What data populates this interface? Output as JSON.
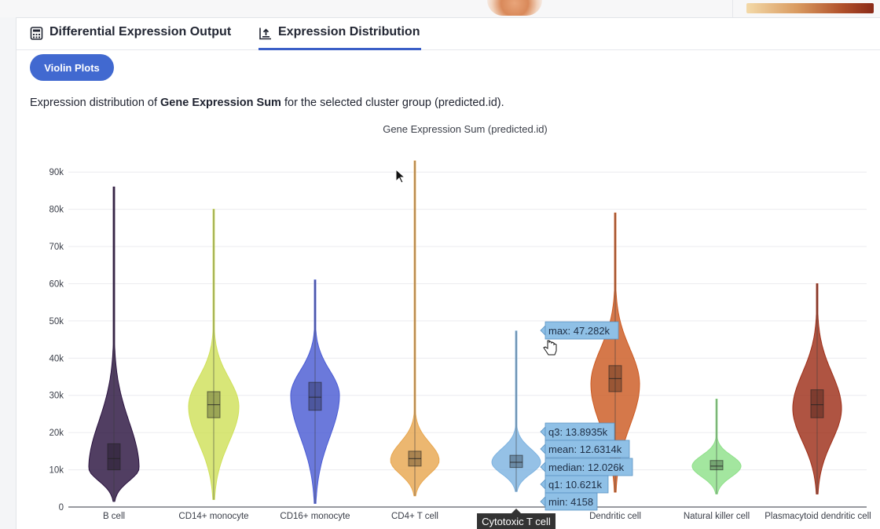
{
  "tabs": [
    {
      "label": "Differential Expression Output",
      "icon": "calculator-icon"
    },
    {
      "label": "Expression Distribution",
      "icon": "chart-upload-icon"
    }
  ],
  "violin_button": "Violin Plots",
  "description": {
    "prefix": "Expression distribution of ",
    "bold": "Gene Expression Sum",
    "suffix": " for the selected cluster group (predicted.id)."
  },
  "chart_data": {
    "type": "violin",
    "title": "Gene Expression Sum (predicted.id)",
    "ylim": [
      0,
      93000
    ],
    "yticks": [
      0,
      10000,
      20000,
      30000,
      40000,
      50000,
      60000,
      70000,
      80000,
      90000
    ],
    "ytick_labels": [
      "0",
      "10k",
      "20k",
      "30k",
      "40k",
      "50k",
      "60k",
      "70k",
      "80k",
      "90k"
    ],
    "grid": true,
    "categories": [
      "B cell",
      "CD14+ monocyte",
      "CD16+ monocyte",
      "CD4+ T cell",
      "Cytotoxic T cell",
      "Dendritic cell",
      "Natural killer cell",
      "Plasmacytoid dendritic cell"
    ],
    "series": [
      {
        "category": "B cell",
        "color": "#2b1340",
        "min": 1500,
        "q1": 10000,
        "median": 13000,
        "q3": 17000,
        "max": 86000,
        "mode": 10500,
        "width": 32
      },
      {
        "category": "CD14+ monocyte",
        "color": "#cfe05a",
        "min": 2000,
        "q1": 24000,
        "median": 27500,
        "q3": 31000,
        "max": 80000,
        "mode": 27000,
        "width": 32
      },
      {
        "category": "CD16+ monocyte",
        "color": "#4a5bd3",
        "min": 1000,
        "q1": 26000,
        "median": 29500,
        "q3": 33500,
        "max": 61000,
        "mode": 30000,
        "width": 31
      },
      {
        "category": "CD4+ T cell",
        "color": "#e8a750",
        "min": 3000,
        "q1": 11000,
        "median": 13000,
        "q3": 15000,
        "max": 93000,
        "mode": 12500,
        "width": 31
      },
      {
        "category": "Cytotoxic T cell",
        "color": "#7eb3e0",
        "min": 4158,
        "q1": 10621,
        "median": 12026,
        "q3": 13893.5,
        "max": 47282,
        "mean": 12631.4,
        "mode": 12000,
        "width": 31
      },
      {
        "category": "Dendritic cell",
        "color": "#cc5a22",
        "min": 4000,
        "q1": 31000,
        "median": 34500,
        "q3": 38000,
        "max": 79000,
        "mode": 33000,
        "width": 31
      },
      {
        "category": "Natural killer cell",
        "color": "#8fe08a",
        "min": 3500,
        "q1": 10000,
        "median": 11000,
        "q3": 12500,
        "max": 29000,
        "mode": 11000,
        "width": 31
      },
      {
        "category": "Plasmacytoid dendritic cell",
        "color": "#9e2e18",
        "min": 3500,
        "q1": 24000,
        "median": 27500,
        "q3": 31500,
        "max": 60000,
        "mode": 26500,
        "width": 31
      }
    ],
    "tooltip": {
      "category": "Cytotoxic T cell",
      "max": "max: 47.282k",
      "q3": "q3: 13.8935k",
      "mean": "mean: 12.6314k",
      "median": "median: 12.026k",
      "q1": "q1: 10.621k",
      "min": "min: 4158"
    },
    "hover_label": "Cytotoxic T cell"
  },
  "colors": {
    "accent": "#3b5fc7",
    "button": "#4169d0",
    "tooltip_bg": "#8fc0e6"
  }
}
